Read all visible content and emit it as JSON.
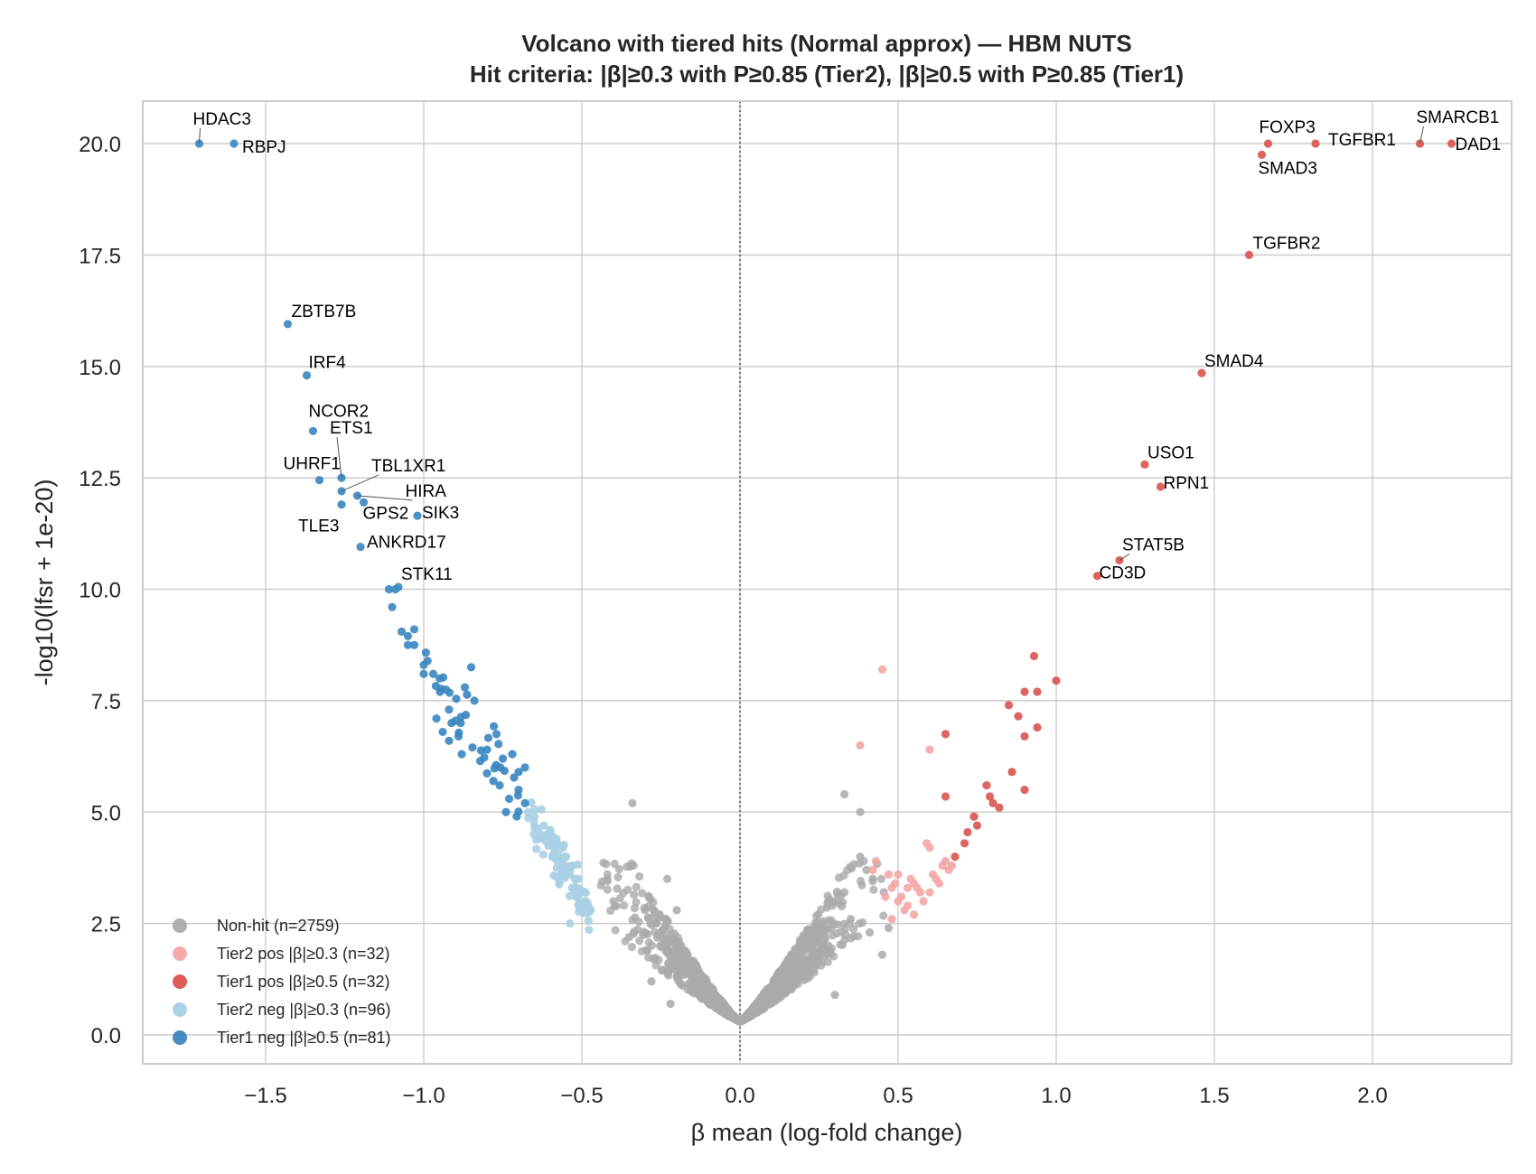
{
  "chart_data": {
    "type": "scatter",
    "title": "Volcano with tiered hits (Normal approx) — HBM NUTS",
    "subtitle": "Hit criteria: |β|≥0.3 with P≥0.85 (Tier2), |β|≥0.5 with P≥0.85 (Tier1)",
    "xlabel": "β mean (log-fold change)",
    "ylabel": "-log10(lfsr + 1e-20)",
    "xlim": [
      -1.9,
      2.45
    ],
    "ylim": [
      -0.7,
      21.0
    ],
    "xticks": [
      -1.5,
      -1.0,
      -0.5,
      0.0,
      0.5,
      1.0,
      1.5,
      2.0
    ],
    "xtick_labels": [
      "−1.5",
      "−1.0",
      "−0.5",
      "0.0",
      "0.5",
      "1.0",
      "1.5",
      "2.0"
    ],
    "yticks": [
      0.0,
      2.5,
      5.0,
      7.5,
      10.0,
      12.5,
      15.0,
      17.5,
      20.0
    ],
    "ytick_labels": [
      "0.0",
      "2.5",
      "5.0",
      "7.5",
      "10.0",
      "12.5",
      "15.0",
      "17.5",
      "20.0"
    ],
    "grid": true,
    "reference_line_x": 0.0,
    "legend_position": "lower-left",
    "series": [
      {
        "name": "Non-hit (n=2759)",
        "color": "#aaaaaa",
        "representative_points": [
          [
            0.0,
            0.3
          ],
          [
            -0.1,
            0.9
          ],
          [
            -0.2,
            1.6
          ],
          [
            -0.25,
            2.3
          ],
          [
            -0.3,
            2.8
          ],
          [
            -0.35,
            2.2
          ],
          [
            -0.4,
            3.0
          ],
          [
            -0.42,
            3.5
          ],
          [
            -0.34,
            5.2
          ],
          [
            -0.23,
            3.5
          ],
          [
            -0.2,
            2.8
          ],
          [
            -0.28,
            1.2
          ],
          [
            -0.22,
            0.7
          ],
          [
            0.1,
            0.8
          ],
          [
            0.2,
            1.4
          ],
          [
            0.28,
            2.0
          ],
          [
            0.35,
            2.6
          ],
          [
            0.33,
            3.2
          ],
          [
            0.38,
            4.0
          ],
          [
            0.41,
            2.3
          ],
          [
            0.4,
            3.7
          ],
          [
            0.42,
            3.5
          ],
          [
            0.38,
            5.0
          ],
          [
            0.33,
            5.4
          ],
          [
            0.47,
            2.4
          ],
          [
            0.45,
            1.8
          ],
          [
            0.3,
            0.9
          ]
        ],
        "cloud": {
          "n": 2759,
          "x_range": [
            -0.45,
            0.48
          ],
          "y_max": 5.2
        }
      },
      {
        "name": "Tier2 pos |β|≥0.3 (n=32)",
        "color": "#f4a6a6",
        "points": [
          [
            0.45,
            8.2
          ],
          [
            0.38,
            6.5
          ],
          [
            0.6,
            6.4
          ],
          [
            0.5,
            3.6
          ],
          [
            0.55,
            3.4
          ],
          [
            0.53,
            3.3
          ],
          [
            0.58,
            3.0
          ],
          [
            0.6,
            3.2
          ],
          [
            0.62,
            3.5
          ],
          [
            0.64,
            3.8
          ],
          [
            0.67,
            3.8
          ],
          [
            0.5,
            3.0
          ],
          [
            0.52,
            2.8
          ],
          [
            0.55,
            2.7
          ],
          [
            0.48,
            3.3
          ],
          [
            0.47,
            3.6
          ],
          [
            0.43,
            3.9
          ],
          [
            0.42,
            3.7
          ],
          [
            0.57,
            3.2
          ],
          [
            0.6,
            4.2
          ],
          [
            0.59,
            4.3
          ],
          [
            0.48,
            2.6
          ],
          [
            0.51,
            3.1
          ],
          [
            0.53,
            2.9
          ],
          [
            0.54,
            3.5
          ],
          [
            0.56,
            3.3
          ],
          [
            0.61,
            3.6
          ],
          [
            0.63,
            3.4
          ],
          [
            0.65,
            3.9
          ],
          [
            0.66,
            3.7
          ],
          [
            0.49,
            3.4
          ],
          [
            0.46,
            3.1
          ]
        ]
      },
      {
        "name": "Tier1 pos |β|≥0.5 (n=32)",
        "color": "#d9534f",
        "points": [
          [
            2.25,
            20.0
          ],
          [
            2.15,
            20.0
          ],
          [
            1.82,
            20.0
          ],
          [
            1.67,
            20.0
          ],
          [
            1.65,
            19.75
          ],
          [
            1.61,
            17.5
          ],
          [
            1.46,
            14.85
          ],
          [
            1.28,
            12.8
          ],
          [
            1.33,
            12.3
          ],
          [
            1.2,
            10.65
          ],
          [
            1.13,
            10.3
          ],
          [
            0.93,
            8.5
          ],
          [
            1.0,
            7.95
          ],
          [
            0.94,
            7.7
          ],
          [
            0.9,
            7.7
          ],
          [
            0.85,
            7.4
          ],
          [
            0.88,
            7.15
          ],
          [
            0.94,
            6.9
          ],
          [
            0.9,
            6.7
          ],
          [
            0.65,
            6.75
          ],
          [
            0.86,
            5.9
          ],
          [
            0.78,
            5.6
          ],
          [
            0.9,
            5.5
          ],
          [
            0.79,
            5.35
          ],
          [
            0.65,
            5.35
          ],
          [
            0.8,
            5.2
          ],
          [
            0.82,
            5.1
          ],
          [
            0.74,
            4.9
          ],
          [
            0.75,
            4.7
          ],
          [
            0.72,
            4.55
          ],
          [
            0.71,
            4.3
          ],
          [
            0.68,
            4.0
          ]
        ]
      },
      {
        "name": "Tier2 neg |β|≥0.3 (n=96)",
        "color": "#a9cfe3",
        "representative_points": [
          [
            -0.67,
            5.0
          ],
          [
            -0.65,
            4.9
          ],
          [
            -0.62,
            4.7
          ],
          [
            -0.6,
            4.6
          ],
          [
            -0.58,
            4.4
          ],
          [
            -0.56,
            4.2
          ],
          [
            -0.55,
            4.0
          ],
          [
            -0.53,
            3.8
          ],
          [
            -0.51,
            3.5
          ],
          [
            -0.5,
            3.2
          ],
          [
            -0.49,
            3.0
          ],
          [
            -0.57,
            3.9
          ],
          [
            -0.6,
            4.3
          ],
          [
            -0.63,
            4.5
          ],
          [
            -0.54,
            3.6
          ],
          [
            -0.52,
            3.3
          ],
          [
            -0.48,
            2.9
          ]
        ],
        "cloud": {
          "n": 96,
          "x_range": [
            -0.67,
            -0.47
          ]
        }
      },
      {
        "name": "Tier1 neg |β|≥0.5 (n=81)",
        "color": "#3a86c0",
        "representative_points": [
          [
            -1.71,
            20.0
          ],
          [
            -1.6,
            20.0
          ],
          [
            -1.43,
            15.95
          ],
          [
            -1.37,
            14.8
          ],
          [
            -1.35,
            13.55
          ],
          [
            -1.33,
            12.45
          ],
          [
            -1.26,
            12.5
          ],
          [
            -1.26,
            12.2
          ],
          [
            -1.21,
            12.1
          ],
          [
            -1.19,
            11.95
          ],
          [
            -1.26,
            11.9
          ],
          [
            -1.02,
            11.65
          ],
          [
            -1.2,
            10.95
          ],
          [
            -1.11,
            10.0
          ],
          [
            -1.09,
            10.0
          ],
          [
            -1.08,
            10.05
          ],
          [
            -1.1,
            9.6
          ],
          [
            -1.03,
            9.1
          ],
          [
            -1.07,
            9.05
          ],
          [
            -1.05,
            8.95
          ],
          [
            -1.05,
            8.75
          ],
          [
            -1.03,
            8.75
          ],
          [
            -1.0,
            8.3
          ],
          [
            -0.85,
            8.25
          ],
          [
            -1.0,
            8.1
          ],
          [
            -0.97,
            8.1
          ],
          [
            -0.95,
            8.0
          ],
          [
            -0.87,
            7.8
          ],
          [
            -0.93,
            7.75
          ],
          [
            -0.84,
            7.5
          ],
          [
            -0.92,
            7.3
          ],
          [
            -0.96,
            7.1
          ],
          [
            -0.9,
            7.05
          ],
          [
            -0.94,
            6.8
          ],
          [
            -0.77,
            6.75
          ],
          [
            -0.89,
            6.7
          ],
          [
            -0.92,
            6.6
          ],
          [
            -0.88,
            6.3
          ],
          [
            -0.8,
            6.4
          ],
          [
            -0.72,
            6.3
          ],
          [
            -0.75,
            6.2
          ],
          [
            -0.68,
            6.0
          ],
          [
            -0.7,
            5.9
          ],
          [
            -0.78,
            5.7
          ],
          [
            -0.7,
            5.5
          ],
          [
            -0.76,
            5.6
          ],
          [
            -0.73,
            5.3
          ],
          [
            -0.68,
            5.2
          ],
          [
            -0.74,
            5.0
          ]
        ],
        "cloud": {
          "n": 81
        }
      }
    ],
    "annotations": [
      {
        "text": "HDAC3",
        "x": -1.71,
        "y": 20.0
      },
      {
        "text": "RBPJ",
        "x": -1.6,
        "y": 20.0
      },
      {
        "text": "ZBTB7B",
        "x": -1.43,
        "y": 15.95
      },
      {
        "text": "IRF4",
        "x": -1.37,
        "y": 14.8
      },
      {
        "text": "NCOR2",
        "x": -1.35,
        "y": 13.55
      },
      {
        "text": "ETS1",
        "x": -1.26,
        "y": 12.5
      },
      {
        "text": "UHRF1",
        "x": -1.33,
        "y": 12.45
      },
      {
        "text": "TBL1XR1",
        "x": -1.26,
        "y": 12.2
      },
      {
        "text": "HIRA",
        "x": -1.21,
        "y": 12.1
      },
      {
        "text": "TLE3",
        "x": -1.26,
        "y": 11.9
      },
      {
        "text": "GPS2",
        "x": -1.19,
        "y": 11.95
      },
      {
        "text": "SIK3",
        "x": -1.02,
        "y": 11.65
      },
      {
        "text": "ANKRD17",
        "x": -1.2,
        "y": 10.95
      },
      {
        "text": "STK11",
        "x": -1.08,
        "y": 10.05
      },
      {
        "text": "FOXP3",
        "x": 1.67,
        "y": 20.0
      },
      {
        "text": "TGFBR1",
        "x": 1.82,
        "y": 20.0
      },
      {
        "text": "SMARCB1",
        "x": 2.15,
        "y": 20.0
      },
      {
        "text": "DAD1",
        "x": 2.25,
        "y": 20.0
      },
      {
        "text": "SMAD3",
        "x": 1.65,
        "y": 19.75
      },
      {
        "text": "TGFBR2",
        "x": 1.61,
        "y": 17.5
      },
      {
        "text": "SMAD4",
        "x": 1.46,
        "y": 14.85
      },
      {
        "text": "USO1",
        "x": 1.28,
        "y": 12.8
      },
      {
        "text": "RPN1",
        "x": 1.33,
        "y": 12.3
      },
      {
        "text": "STAT5B",
        "x": 1.2,
        "y": 10.65
      },
      {
        "text": "CD3D",
        "x": 1.13,
        "y": 10.3
      }
    ]
  }
}
